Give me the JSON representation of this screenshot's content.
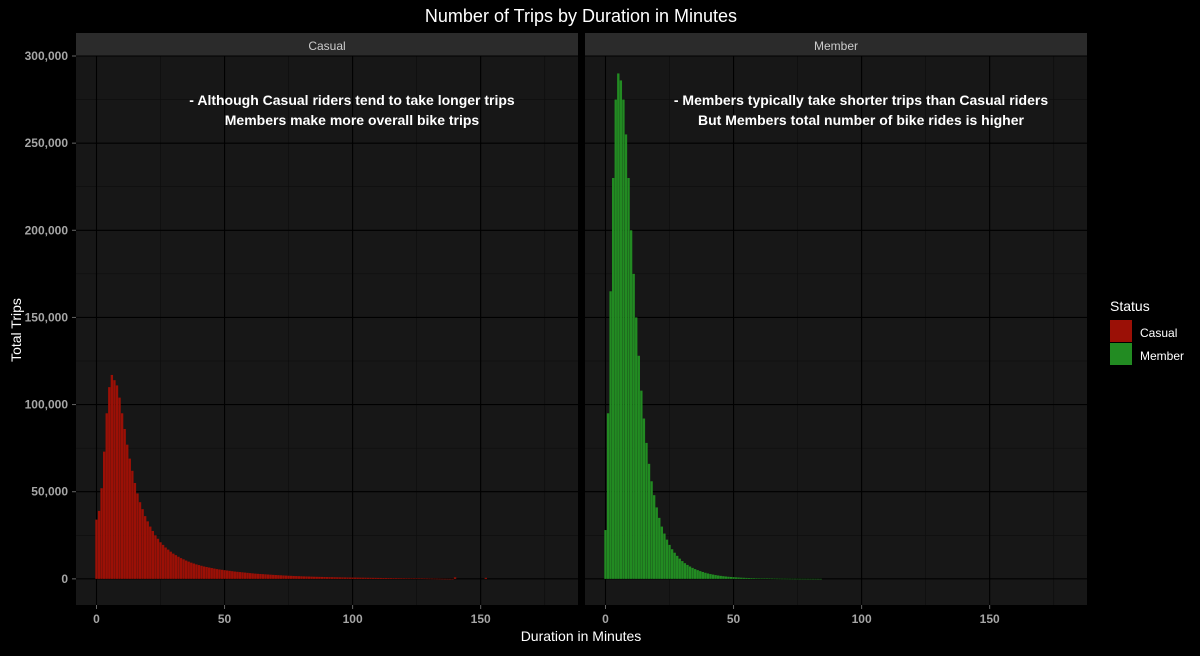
{
  "title": "Number of Trips by Duration in Minutes",
  "colors": {
    "background": "#000000",
    "panel": "#171717",
    "strip": "#2b2b2b",
    "grid_major": "#000000",
    "grid_minor": "#0d0d0d",
    "casual": "#9b1006",
    "member": "#228b22",
    "tick_text": "#a6a6a6",
    "text": "#ffffff"
  },
  "legend": {
    "title": "Status",
    "items": [
      {
        "label": "Casual",
        "color": "#9b1006"
      },
      {
        "label": "Member",
        "color": "#228b22"
      }
    ]
  },
  "chart_data": {
    "type": "bar",
    "title": "Number of Trips by Duration in Minutes",
    "xlabel": "Duration in Minutes",
    "ylabel": "Total Trips",
    "xlim": [
      -8,
      188
    ],
    "ylim": [
      -15000,
      300000
    ],
    "xticks": [
      0,
      50,
      100,
      150
    ],
    "yticks": [
      0,
      50000,
      100000,
      150000,
      200000,
      250000,
      300000
    ],
    "ytick_labels": [
      "0",
      "50,000",
      "100,000",
      "150,000",
      "200,000",
      "250,000",
      "300,000"
    ],
    "grid": true,
    "legend_position": "right",
    "facets": [
      {
        "strip": "Casual",
        "name": "Casual",
        "annotation": [
          "- Although Casual riders tend to take longer trips",
          "Members make more overall bike trips"
        ],
        "x": [
          0,
          1,
          2,
          3,
          4,
          5,
          6,
          7,
          8,
          9,
          10,
          11,
          12,
          13,
          14,
          15,
          16,
          17,
          18,
          19,
          20,
          21,
          22,
          23,
          24,
          25,
          26,
          27,
          28,
          29,
          30,
          31,
          32,
          33,
          34,
          35,
          36,
          37,
          38,
          39,
          40,
          41,
          42,
          43,
          44,
          45,
          46,
          47,
          48,
          49,
          50,
          51,
          52,
          53,
          54,
          55,
          56,
          57,
          58,
          59,
          60,
          61,
          62,
          63,
          64,
          65,
          66,
          67,
          68,
          69,
          70,
          71,
          72,
          73,
          74,
          75,
          76,
          77,
          78,
          79,
          80,
          81,
          82,
          83,
          84,
          85,
          86,
          87,
          88,
          89,
          90,
          91,
          92,
          93,
          94,
          95,
          96,
          97,
          98,
          99,
          100,
          101,
          102,
          103,
          104,
          105,
          106,
          107,
          108,
          109,
          110,
          111,
          112,
          113,
          114,
          115,
          116,
          117,
          118,
          119,
          120,
          121,
          122,
          123,
          124,
          125,
          126,
          127,
          128,
          129,
          130,
          131,
          132,
          133,
          134,
          135,
          136,
          137,
          138,
          139,
          140,
          141,
          142,
          143,
          144,
          145,
          146,
          147,
          148,
          149,
          150,
          151,
          152
        ],
        "values": [
          34000,
          39000,
          52000,
          73000,
          95000,
          110000,
          117000,
          114000,
          111000,
          104000,
          95000,
          86000,
          77000,
          69000,
          62000,
          55000,
          49000,
          44000,
          40000,
          36000,
          33000,
          30000,
          27500,
          25000,
          23000,
          21000,
          19500,
          18000,
          16800,
          15600,
          14500,
          13600,
          12700,
          11900,
          11200,
          10500,
          9900,
          9300,
          8800,
          8300,
          7900,
          7500,
          7100,
          6800,
          6500,
          6200,
          5900,
          5600,
          5400,
          5200,
          5000,
          4800,
          4600,
          4400,
          4200,
          4050,
          3900,
          3750,
          3600,
          3450,
          3300,
          3150,
          3000,
          2900,
          2800,
          2700,
          2600,
          2500,
          2400,
          2300,
          2200,
          2120,
          2040,
          1960,
          1880,
          1800,
          1730,
          1660,
          1600,
          1540,
          1480,
          1420,
          1370,
          1320,
          1270,
          1220,
          1180,
          1140,
          1100,
          1060,
          1020,
          980,
          950,
          920,
          890,
          860,
          830,
          800,
          780,
          760,
          740,
          720,
          700,
          680,
          660,
          640,
          620,
          600,
          580,
          560,
          540,
          520,
          500,
          480,
          460,
          440,
          420,
          400,
          380,
          360,
          340,
          320,
          300,
          280,
          260,
          240,
          220,
          200,
          180,
          160,
          140,
          120,
          100,
          80,
          60,
          40,
          20,
          10,
          5,
          2,
          900,
          0,
          0,
          0,
          0,
          0,
          0,
          0,
          0,
          0,
          0,
          0,
          600
        ]
      },
      {
        "strip": "Member",
        "name": "Member",
        "annotation": [
          "- Members typically take shorter trips than Casual riders",
          "But Members total number of bike rides is higher"
        ],
        "x": [
          0,
          1,
          2,
          3,
          4,
          5,
          6,
          7,
          8,
          9,
          10,
          11,
          12,
          13,
          14,
          15,
          16,
          17,
          18,
          19,
          20,
          21,
          22,
          23,
          24,
          25,
          26,
          27,
          28,
          29,
          30,
          31,
          32,
          33,
          34,
          35,
          36,
          37,
          38,
          39,
          40,
          41,
          42,
          43,
          44,
          45,
          46,
          47,
          48,
          49,
          50,
          51,
          52,
          53,
          54,
          55,
          56,
          57,
          58,
          59,
          60,
          61,
          62,
          63,
          64,
          65,
          66,
          67,
          68,
          69,
          70,
          71,
          72,
          73,
          74,
          75,
          76,
          77,
          78,
          79,
          80,
          81,
          82,
          83,
          84
        ],
        "values": [
          28000,
          95000,
          165000,
          230000,
          275000,
          290000,
          286000,
          275000,
          255000,
          230000,
          200000,
          175000,
          150000,
          128000,
          108000,
          92000,
          78000,
          66000,
          56000,
          48000,
          41000,
          35000,
          30000,
          26000,
          22500,
          19500,
          17000,
          15000,
          13200,
          11600,
          10200,
          9000,
          8000,
          7100,
          6300,
          5600,
          5000,
          4450,
          3950,
          3500,
          3100,
          2750,
          2450,
          2180,
          1940,
          1720,
          1530,
          1360,
          1210,
          1080,
          960,
          850,
          760,
          680,
          610,
          540,
          480,
          430,
          380,
          340,
          300,
          270,
          240,
          210,
          190,
          170,
          150,
          130,
          115,
          100,
          90,
          80,
          70,
          60,
          52,
          45,
          40,
          35,
          30,
          26,
          22,
          18,
          14,
          10,
          6
        ]
      }
    ]
  }
}
